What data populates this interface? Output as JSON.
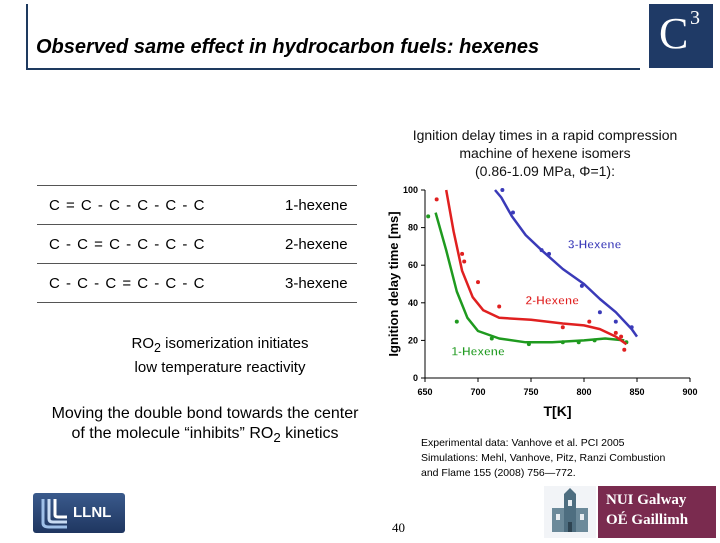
{
  "slide": {
    "title": "Observed same effect in hydrocarbon fuels: hexenes",
    "logo_text": "C",
    "logo_superscript": "3",
    "caption_line1": "Ignition delay times in a rapid compression",
    "caption_line2": "machine of hexene isomers",
    "caption_line3": "(0.86-1.09 MPa, Φ=1):",
    "isomers": [
      {
        "formula": "C = C - C - C - C - C",
        "name": "1-hexene"
      },
      {
        "formula": "C - C = C - C - C - C",
        "name": "2-hexene"
      },
      {
        "formula": "C - C - C = C - C - C",
        "name": "3-hexene"
      }
    ],
    "ro2_pre": "RO",
    "ro2_sub": "2",
    "ro2_post": " isomerization initiates",
    "ro2_line2": "low temperature reactivity",
    "moving_line1": "Moving the double bond towards the center",
    "moving_line2_pre": "of the molecule “inhibits” RO",
    "moving_line2_sub": "2",
    "moving_line2_post": " kinetics",
    "ref_line1": "Experimental data: Vanhove et al. PCI 2005",
    "ref_line2": "Simulations: Mehl, Vanhove, Pitz, Ranzi Combustion",
    "ref_line3": "and Flame  155 (2008) 756—772.",
    "page_number": "40",
    "llnl_logo": "LLNL",
    "nui_line1": "NUI Galway",
    "nui_line2": "OÉ Gaillimh",
    "colors": {
      "title_border": "#1e3a5f",
      "logo_bg": "#1f3a66",
      "nui_bg": "#7a2b4f"
    }
  },
  "chart_data": {
    "type": "scatter",
    "xlabel": "T[K]",
    "ylabel": "Ignition delay time [ms]",
    "xlim": [
      650,
      900
    ],
    "ylim": [
      0,
      100
    ],
    "xticks": [
      "650",
      "700",
      "750",
      "800",
      "850",
      "900"
    ],
    "yticks": [
      "0",
      "20",
      "40",
      "60",
      "80",
      "100"
    ],
    "series": [
      {
        "name": "1-Hexene",
        "color": "#1f9a1f",
        "points": [
          [
            653,
            86
          ],
          [
            680,
            30
          ],
          [
            713,
            21
          ],
          [
            748,
            18
          ],
          [
            780,
            19
          ],
          [
            795,
            19
          ],
          [
            810,
            20
          ],
          [
            840,
            19
          ]
        ],
        "curve": [
          [
            660,
            88
          ],
          [
            670,
            68
          ],
          [
            680,
            46
          ],
          [
            690,
            32
          ],
          [
            700,
            25
          ],
          [
            720,
            21
          ],
          [
            745,
            19
          ],
          [
            770,
            19
          ],
          [
            800,
            20
          ],
          [
            820,
            21
          ],
          [
            838,
            20
          ]
        ]
      },
      {
        "name": "2-Hexene",
        "color": "#e02020",
        "points": [
          [
            661,
            95
          ],
          [
            685,
            66
          ],
          [
            687,
            62
          ],
          [
            700,
            51
          ],
          [
            720,
            38
          ],
          [
            780,
            27
          ],
          [
            805,
            30
          ],
          [
            830,
            24
          ],
          [
            835,
            22
          ],
          [
            838,
            15
          ]
        ],
        "curve": [
          [
            670,
            100
          ],
          [
            677,
            78
          ],
          [
            685,
            57
          ],
          [
            695,
            43
          ],
          [
            705,
            36
          ],
          [
            720,
            32
          ],
          [
            750,
            31
          ],
          [
            780,
            29
          ],
          [
            800,
            28
          ],
          [
            815,
            26
          ],
          [
            830,
            22
          ],
          [
            840,
            18
          ]
        ]
      },
      {
        "name": "3-Hexene",
        "color": "#3a3ab8",
        "points": [
          [
            723,
            100
          ],
          [
            733,
            88
          ],
          [
            760,
            68
          ],
          [
            767,
            66
          ],
          [
            798,
            49
          ],
          [
            815,
            35
          ],
          [
            830,
            30
          ],
          [
            845,
            27
          ]
        ],
        "curve": [
          [
            716,
            100
          ],
          [
            722,
            96
          ],
          [
            732,
            86
          ],
          [
            745,
            76
          ],
          [
            760,
            68
          ],
          [
            780,
            58
          ],
          [
            800,
            50
          ],
          [
            815,
            42
          ],
          [
            830,
            35
          ],
          [
            845,
            26
          ],
          [
            850,
            22
          ]
        ]
      }
    ]
  }
}
